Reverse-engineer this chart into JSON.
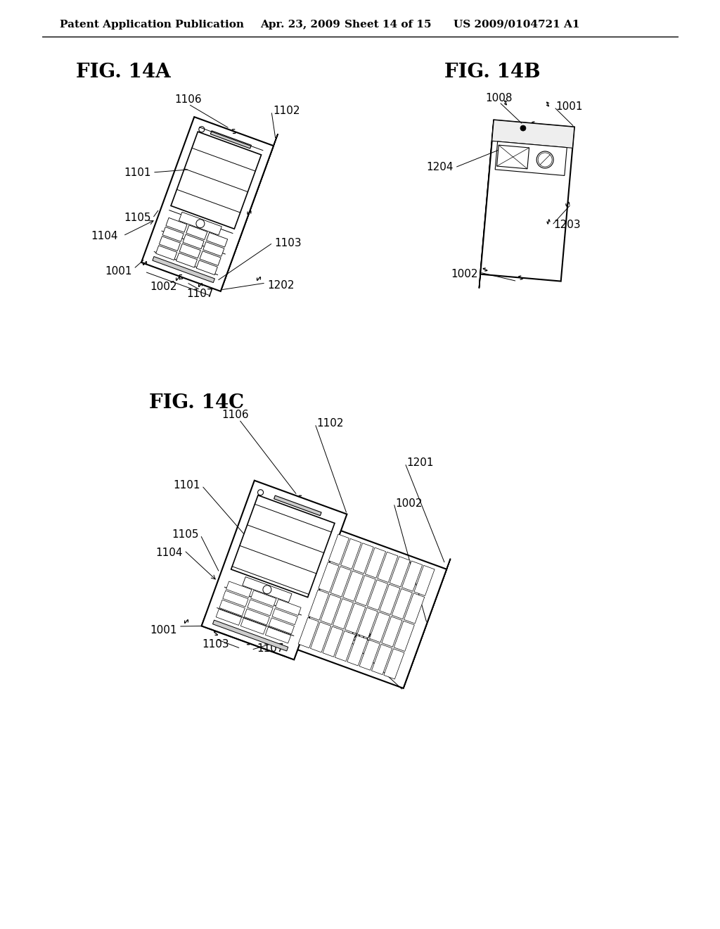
{
  "bg_color": "#ffffff",
  "line_color": "#000000",
  "header_text": "Patent Application Publication",
  "header_date": "Apr. 23, 2009",
  "header_sheet": "Sheet 14 of 15",
  "header_patent": "US 2009/0104721 A1",
  "fig_14a_title": "FIG. 14A",
  "fig_14b_title": "FIG. 14B",
  "fig_14c_title": "FIG. 14C",
  "title_fontsize": 20,
  "label_fontsize": 11,
  "header_fontsize": 11
}
